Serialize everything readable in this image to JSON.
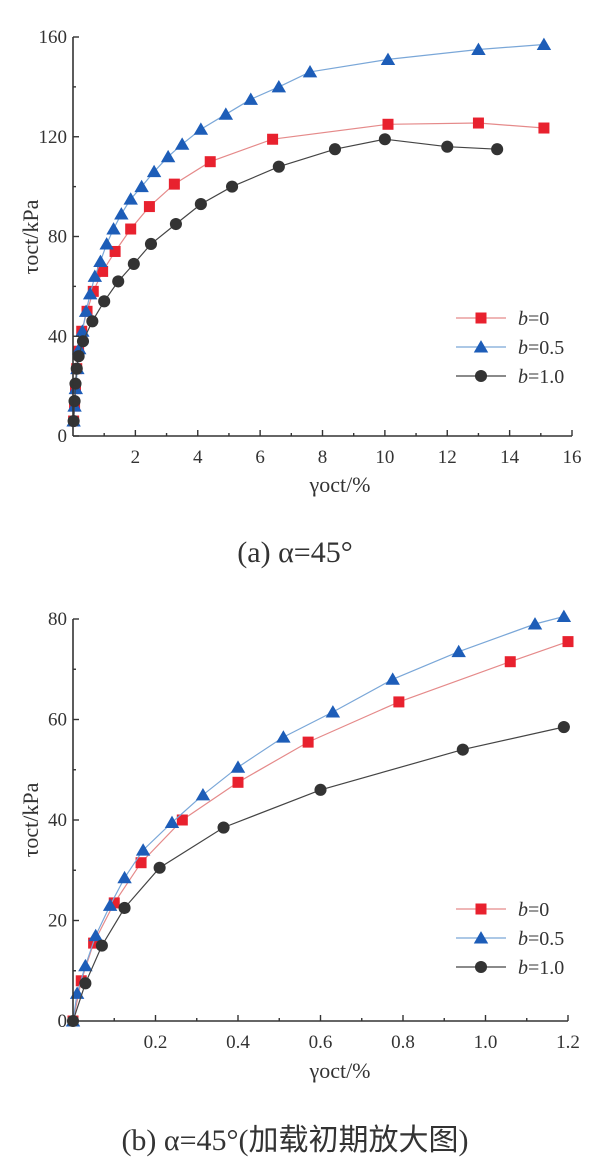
{
  "legend_markers": {
    "b=0": "square",
    "b=0.5": "triangle",
    "b=1.0": "circle"
  },
  "colors": {
    "b=0": "#e8212e",
    "b=0.5": "#1d5db8",
    "b=1.0": "#333333",
    "line_b=0": "#e58a8a",
    "line_b=0.5": "#7aa7d8",
    "line_b=1.0": "#444444"
  },
  "chart_data": [
    {
      "type": "line",
      "caption": "(a) α=45°",
      "xlabel": "γoct/%",
      "ylabel": "τoct/kPa",
      "xlim": [
        0,
        16
      ],
      "ylim": [
        0,
        160
      ],
      "xticks": [
        "2",
        "4",
        "6",
        "8",
        "10",
        "12",
        "14",
        "16"
      ],
      "yticks": [
        "0",
        "40",
        "80",
        "120",
        "160"
      ],
      "legend_position": "bottom-right",
      "series": [
        {
          "name": "b=0",
          "x": [
            0.02,
            0.05,
            0.08,
            0.12,
            0.18,
            0.28,
            0.45,
            0.65,
            0.95,
            1.35,
            1.85,
            2.45,
            3.25,
            4.4,
            6.4,
            10.1,
            13.0,
            15.1
          ],
          "y": [
            6,
            12,
            19,
            27,
            34,
            42,
            50,
            58,
            66,
            74,
            83,
            92,
            101,
            110,
            119,
            125,
            125.5,
            123.5
          ]
        },
        {
          "name": "b=0.5",
          "x": [
            0.02,
            0.05,
            0.09,
            0.14,
            0.2,
            0.3,
            0.42,
            0.55,
            0.7,
            0.88,
            1.08,
            1.3,
            1.55,
            1.85,
            2.2,
            2.6,
            3.05,
            3.5,
            4.1,
            4.9,
            5.7,
            6.6,
            7.6,
            10.1,
            13.0,
            15.1
          ],
          "y": [
            6,
            12,
            19,
            27,
            35,
            42,
            50,
            57,
            64,
            70,
            77,
            83,
            89,
            95,
            100,
            106,
            112,
            117,
            123,
            129,
            135,
            140,
            146,
            151,
            155,
            157
          ]
        },
        {
          "name": "b=1.0",
          "x": [
            0.02,
            0.05,
            0.08,
            0.12,
            0.18,
            0.32,
            0.62,
            1.0,
            1.45,
            1.95,
            2.5,
            3.3,
            4.1,
            5.1,
            6.6,
            8.4,
            10.0,
            12.0,
            13.6
          ],
          "y": [
            6,
            14,
            21,
            27,
            32,
            38,
            46,
            54,
            62,
            69,
            77,
            85,
            93,
            100,
            108,
            115,
            119,
            116,
            115
          ]
        }
      ]
    },
    {
      "type": "line",
      "caption": "(b) α=45°(加载初期放大图)",
      "xlabel": "γoct/%",
      "ylabel": "τoct/kPa",
      "xlim": [
        0,
        1.2
      ],
      "ylim": [
        0,
        80
      ],
      "xticks": [
        "0.2",
        "0.4",
        "0.6",
        "0.8",
        "1.0",
        "1.2"
      ],
      "yticks": [
        "0",
        "20",
        "40",
        "60",
        "80"
      ],
      "legend_position": "bottom-right",
      "series": [
        {
          "name": "b=0",
          "x": [
            0.0,
            0.02,
            0.05,
            0.1,
            0.165,
            0.265,
            0.4,
            0.57,
            0.79,
            1.06,
            1.2
          ],
          "y": [
            0,
            8,
            15.5,
            23.5,
            31.5,
            40,
            47.5,
            55.5,
            63.5,
            71.5,
            75.5
          ]
        },
        {
          "name": "b=0.5",
          "x": [
            0.0,
            0.01,
            0.03,
            0.055,
            0.09,
            0.125,
            0.17,
            0.24,
            0.315,
            0.4,
            0.51,
            0.63,
            0.775,
            0.935,
            1.12,
            1.19
          ],
          "y": [
            0,
            5.5,
            11,
            17,
            23,
            28.5,
            34,
            39.5,
            45,
            50.5,
            56.5,
            61.5,
            68,
            73.5,
            79,
            80.5
          ]
        },
        {
          "name": "b=1.0",
          "x": [
            0.0,
            0.03,
            0.07,
            0.125,
            0.21,
            0.365,
            0.6,
            0.945,
            1.19
          ],
          "y": [
            0,
            7.5,
            15,
            22.5,
            30.5,
            38.5,
            46,
            54,
            58.5
          ]
        }
      ]
    }
  ]
}
